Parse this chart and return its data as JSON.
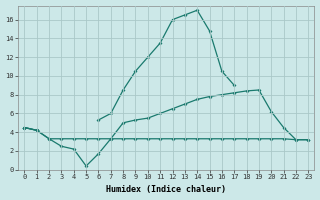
{
  "title": "",
  "xlabel": "Humidex (Indice chaleur)",
  "ylabel": "",
  "background_color": "#cce8e8",
  "grid_color": "#aac8c8",
  "line_color": "#1a7a6e",
  "x": [
    0,
    1,
    2,
    3,
    4,
    5,
    6,
    7,
    8,
    9,
    10,
    11,
    12,
    13,
    14,
    15,
    16,
    17,
    18,
    19,
    20,
    21,
    22,
    23
  ],
  "line_min": [
    4.5,
    4.2,
    3.3,
    3.3,
    3.3,
    3.3,
    3.3,
    3.3,
    3.3,
    3.3,
    3.3,
    3.3,
    3.3,
    3.3,
    3.3,
    3.3,
    3.3,
    3.3,
    3.3,
    3.3,
    3.3,
    3.3,
    3.2,
    3.2
  ],
  "line_mid": [
    4.5,
    4.2,
    3.3,
    2.5,
    2.2,
    0.4,
    1.7,
    3.3,
    5.0,
    5.3,
    5.5,
    6.0,
    6.5,
    7.0,
    7.5,
    7.8,
    8.0,
    8.2,
    8.4,
    8.5,
    6.2,
    4.5,
    3.2,
    3.2
  ],
  "line_max": [
    4.5,
    4.2,
    null,
    null,
    null,
    null,
    5.3,
    6.0,
    8.5,
    10.5,
    12.0,
    13.5,
    16.0,
    16.5,
    17.0,
    14.8,
    10.5,
    9.0,
    null,
    null,
    null,
    null,
    null,
    null
  ],
  "ylim": [
    0,
    17.5
  ],
  "xlim": [
    -0.5,
    23.5
  ],
  "yticks": [
    0,
    2,
    4,
    6,
    8,
    10,
    12,
    14,
    16
  ],
  "xticks": [
    0,
    1,
    2,
    3,
    4,
    5,
    6,
    7,
    8,
    9,
    10,
    11,
    12,
    13,
    14,
    15,
    16,
    17,
    18,
    19,
    20,
    21,
    22,
    23
  ],
  "xlabel_fontsize": 6.0,
  "tick_fontsize": 5.0,
  "marker_size": 2.0,
  "line_width": 0.9
}
